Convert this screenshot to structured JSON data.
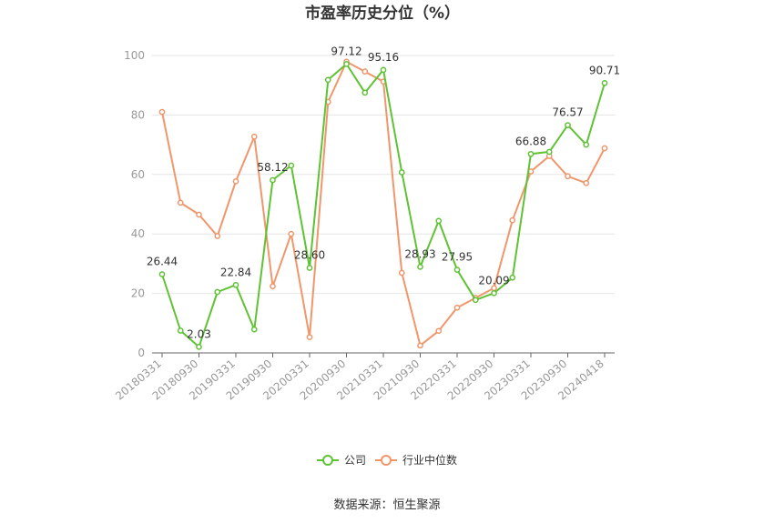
{
  "chart_data": {
    "type": "line",
    "title": "市盈率历史分位（%）",
    "x_labels": [
      "20180331",
      "20180930",
      "20190331",
      "20190930",
      "20200331",
      "20200930",
      "20210331",
      "20210930",
      "20220331",
      "20220930",
      "20230331",
      "20230930",
      "20240418"
    ],
    "ylim": [
      0,
      100
    ],
    "y_ticks": [
      0,
      20,
      40,
      60,
      80,
      100
    ],
    "grid": true,
    "legend_position": "bottom-center",
    "series": [
      {
        "name": "公司",
        "color": "#5ec234",
        "values": [
          26.44,
          7.5,
          2.03,
          20.5,
          22.84,
          7.9,
          58.12,
          63.0,
          28.6,
          91.8,
          97.12,
          87.5,
          95.16,
          60.7,
          28.93,
          44.4,
          27.95,
          17.8,
          20.09,
          25.3,
          66.88,
          67.6,
          76.57,
          70.0,
          90.71
        ],
        "labels": {
          "0": "26.44",
          "2": "2.03",
          "4": "22.84",
          "6": "58.12",
          "8": "28.60",
          "10": "97.12",
          "12": "95.16",
          "14": "28.93",
          "16": "27.95",
          "18": "20.09",
          "20": "66.88",
          "22": "76.57",
          "24": "90.71"
        }
      },
      {
        "name": "行业中位数",
        "color": "#f0966b",
        "values": [
          81.0,
          50.5,
          46.5,
          39.3,
          57.7,
          72.7,
          22.4,
          40.0,
          5.3,
          84.4,
          97.9,
          94.6,
          91.2,
          26.9,
          2.5,
          7.4,
          15.2,
          18.5,
          21.8,
          44.6,
          61.0,
          66.2,
          59.4,
          57.1,
          68.8
        ]
      }
    ]
  },
  "source_text": "数据来源：恒生聚源"
}
